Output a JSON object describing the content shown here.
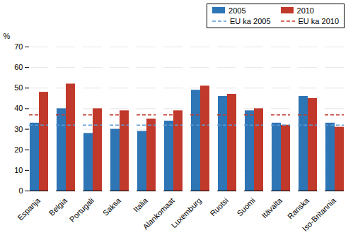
{
  "chart_data": {
    "type": "bar",
    "categories": [
      "Espanja",
      "Belgia",
      "Portugali",
      "Saksa",
      "Italia",
      "Alankomaat",
      "Luxemburg",
      "Ruotsi",
      "Suomi",
      "Itävalta",
      "Ranska",
      "Iso-Britannia"
    ],
    "series": [
      {
        "name": "2005",
        "color": "#2E75B6",
        "values": [
          33,
          40,
          28,
          30,
          29,
          34,
          49,
          46,
          39,
          33,
          46,
          33
        ]
      },
      {
        "name": "2010",
        "color": "#C0392B",
        "values": [
          48,
          52,
          40,
          39,
          35,
          39,
          51,
          47,
          40,
          32,
          45,
          31
        ]
      },
      {
        "name": "EU ka 2005",
        "type": "hline",
        "color": "#5B9BD5",
        "line_style": "dashed",
        "y": 32
      },
      {
        "name": "EU ka 2010",
        "type": "hline",
        "color": "#C0392B",
        "line_style": "dashed",
        "y": 37
      }
    ],
    "ylabel": "%",
    "ylim": [
      0,
      70
    ],
    "yticks": [
      0,
      10,
      20,
      30,
      40,
      50,
      60,
      70
    ],
    "grid": true,
    "legend": "upper right"
  }
}
